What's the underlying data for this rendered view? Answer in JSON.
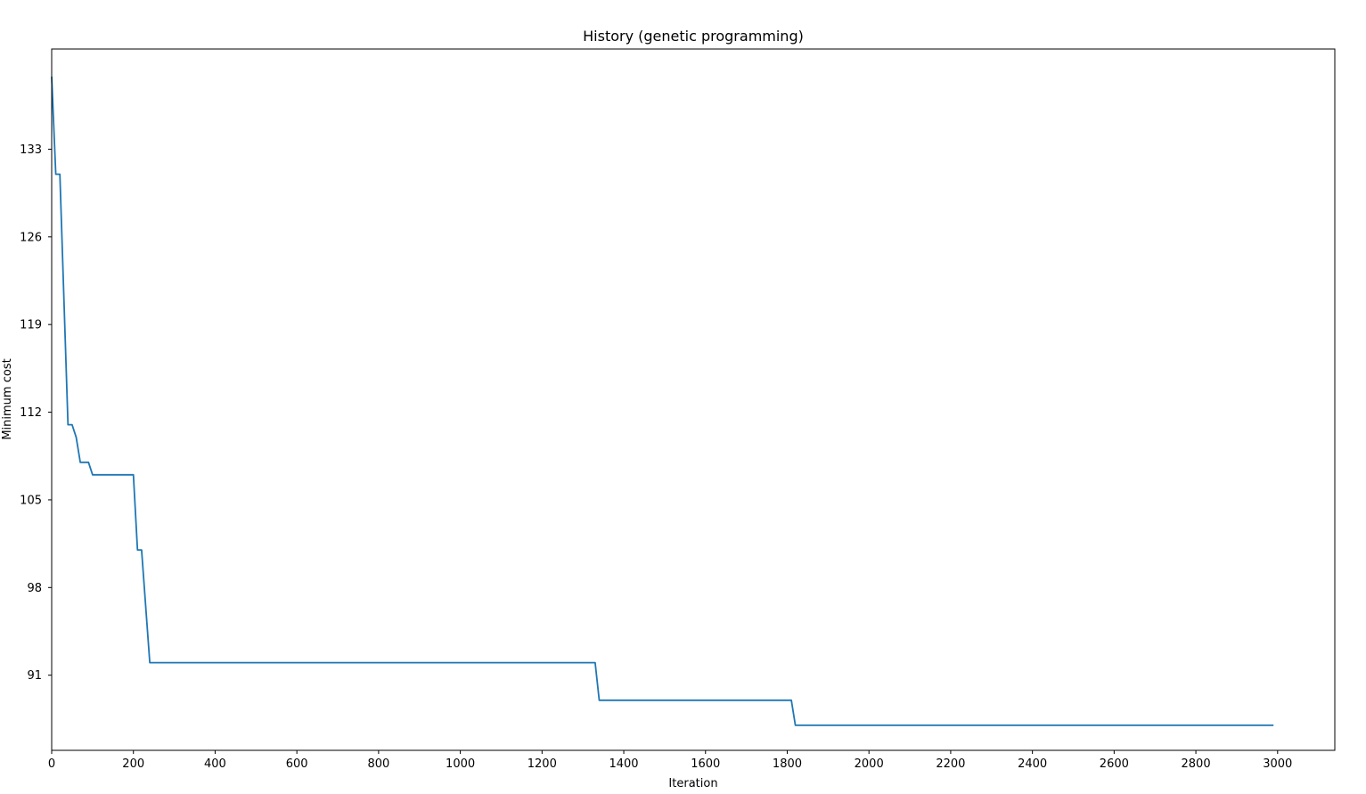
{
  "chart_data": {
    "type": "line",
    "title": "History (genetic programming)",
    "xlabel": "Iteration",
    "ylabel": "Minimum cost",
    "xlim": [
      0,
      3140
    ],
    "ylim": [
      85,
      141
    ],
    "xticks": [
      0,
      200,
      400,
      600,
      800,
      1000,
      1200,
      1400,
      1600,
      1800,
      2000,
      2200,
      2400,
      2600,
      2800,
      3000
    ],
    "yticks": [
      91,
      98,
      105,
      112,
      119,
      126,
      133
    ],
    "grid": false,
    "line_color": "#1f77b4",
    "series": [
      {
        "x": [
          0,
          10,
          20,
          40,
          50,
          60,
          70,
          90,
          100,
          200,
          210,
          220,
          240,
          1330,
          1340,
          1810,
          1820,
          2990
        ],
        "y": [
          138.8,
          131.0,
          131.0,
          111.0,
          111.0,
          110.0,
          108.0,
          108.0,
          107.0,
          107.0,
          101.0,
          101.0,
          92.0,
          92.0,
          89.0,
          89.0,
          87.0,
          87.0
        ]
      }
    ]
  }
}
